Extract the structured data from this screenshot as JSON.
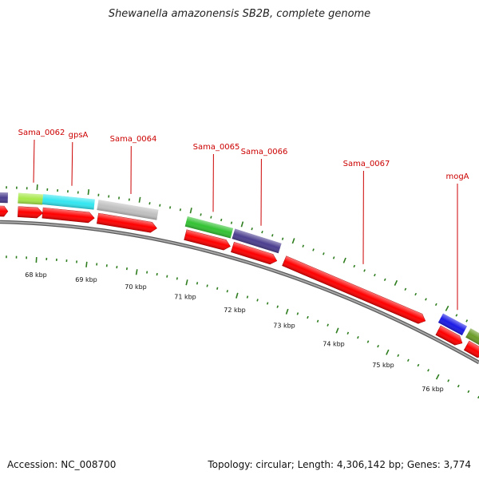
{
  "title": "Shewanella amazonensis SB2B, complete genome",
  "footer": {
    "accession": "Accession: NC_008700",
    "summary": "Topology: circular; Length: 4,306,142 bp; Genes: 3,774"
  },
  "colors": {
    "background": "#ffffff",
    "backbone": "#808080",
    "tick": "#2e7d1e",
    "label": "#cc0000",
    "cds": "#ff0000"
  },
  "kbp_labels": [
    "68 kbp",
    "69 kbp",
    "70 kbp",
    "71 kbp",
    "72 kbp",
    "73 kbp",
    "74 kbp",
    "75 kbp",
    "76 kbp"
  ],
  "gene_labels": [
    "Sama_0062",
    "gpsA",
    "Sama_0064",
    "Sama_0065",
    "Sama_0066",
    "Sama_0067",
    "mogA"
  ],
  "features": [
    {
      "color": "#4b3f8f"
    },
    {
      "color": "#a6e84a"
    },
    {
      "color": "#33e6f0"
    },
    {
      "color": "#c0c0c0"
    },
    {
      "color": "#33c233"
    },
    {
      "color": "#4b3f8f"
    },
    {
      "color": "#1a1ae6"
    },
    {
      "color": "#6b9c2a"
    }
  ]
}
